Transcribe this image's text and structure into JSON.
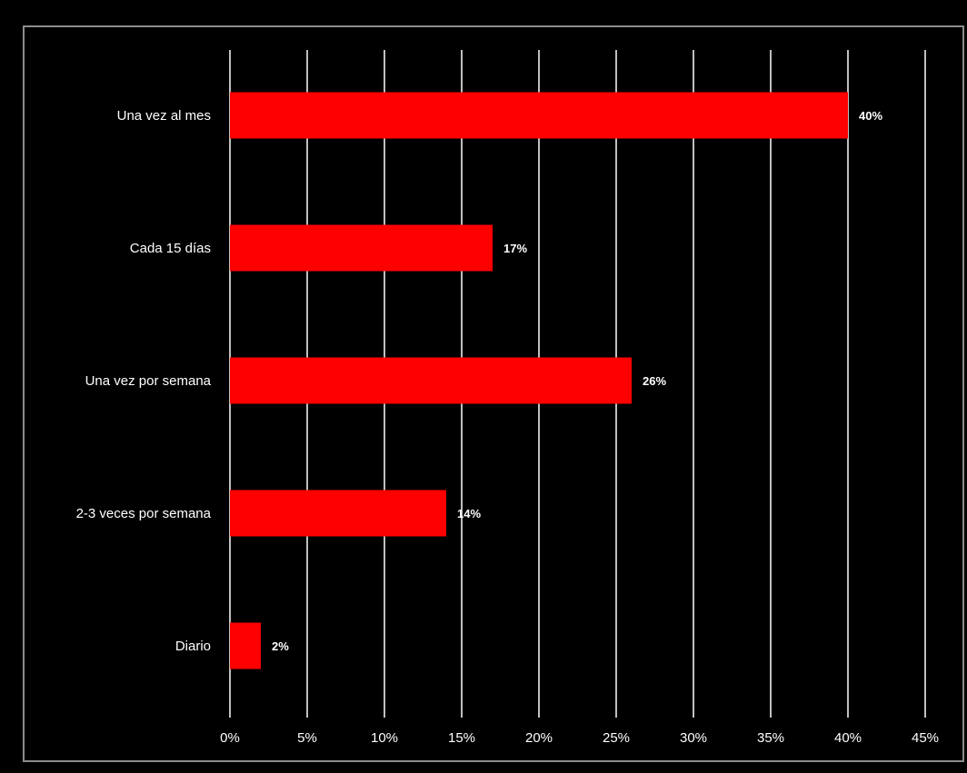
{
  "colors": {
    "background": "#000000",
    "bar": "#ff0000",
    "grid": "#bfbfbf",
    "text": "#ffffff",
    "frame": "#8c8c8c"
  },
  "chart_data": {
    "type": "bar",
    "orientation": "horizontal",
    "categories": [
      "Una vez al mes",
      "Cada 15 días",
      "Una vez por semana",
      "2-3 veces por semana",
      "Diario"
    ],
    "values": [
      40,
      17,
      26,
      14,
      2
    ],
    "data_labels": [
      "40%",
      "17%",
      "26%",
      "14%",
      "2%"
    ],
    "xlim": [
      0,
      45
    ],
    "x_ticks": [
      0,
      5,
      10,
      15,
      20,
      25,
      30,
      35,
      40,
      45
    ],
    "x_tick_labels": [
      "0%",
      "5%",
      "10%",
      "15%",
      "20%",
      "25%",
      "30%",
      "35%",
      "40%",
      "45%"
    ],
    "grid": "vertical",
    "legend": "none"
  }
}
